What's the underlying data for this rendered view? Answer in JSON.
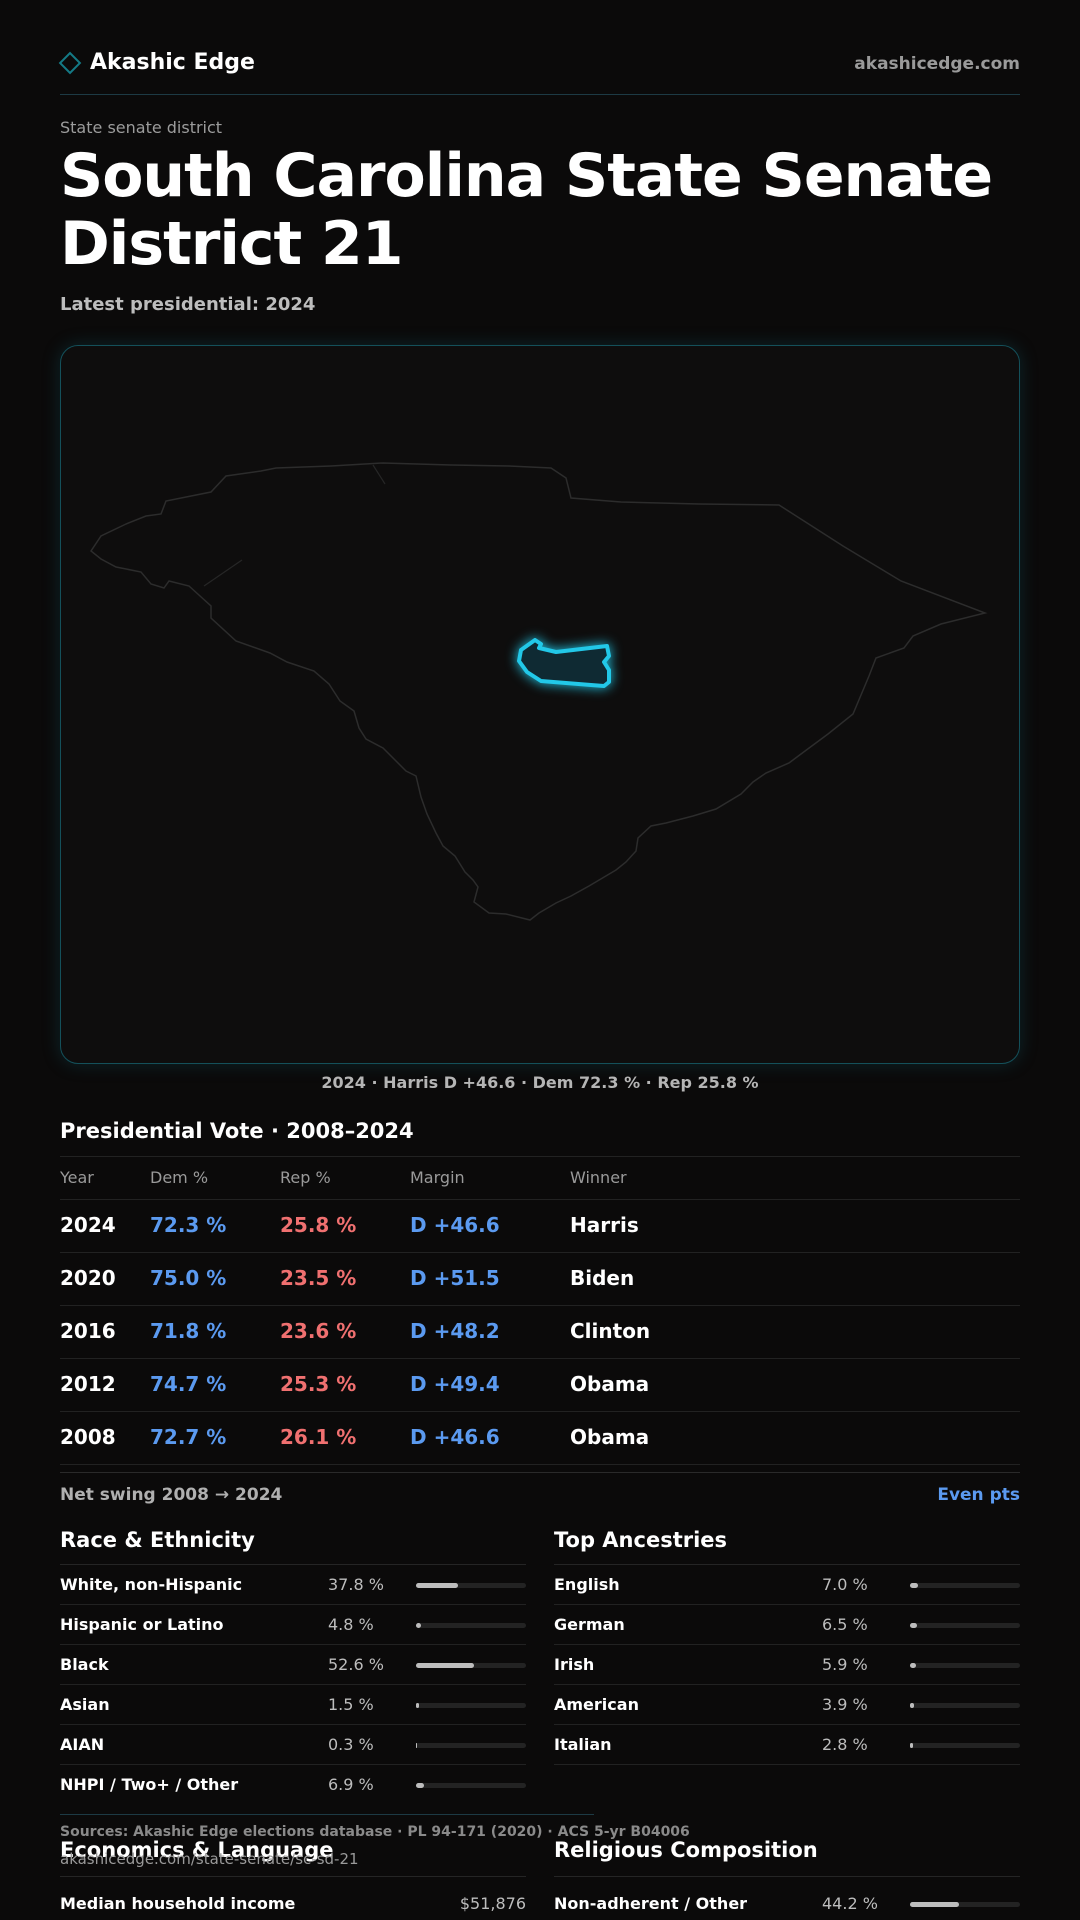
{
  "header": {
    "brand_name": "Akashic Edge",
    "site_url": "akashicedge.com",
    "accent_color": "#147a86"
  },
  "page": {
    "eyebrow": "State senate district",
    "title": "South Carolina State Senate District 21",
    "subtitle": "Latest presidential: 2024"
  },
  "map": {
    "caption": "2024 · Harris D +46.6 · Dem 72.3 % · Rep 25.8 %",
    "highlight_color": "#22c8e8"
  },
  "presidential": {
    "title": "Presidential Vote · 2008–2024",
    "headers": {
      "year": "Year",
      "dem": "Dem %",
      "rep": "Rep %",
      "margin": "Margin",
      "winner": "Winner"
    },
    "rows": [
      {
        "year": "2024",
        "dem": "72.3 %",
        "rep": "25.8 %",
        "margin": "D +46.6",
        "winner": "Harris"
      },
      {
        "year": "2020",
        "dem": "75.0 %",
        "rep": "23.5 %",
        "margin": "D +51.5",
        "winner": "Biden"
      },
      {
        "year": "2016",
        "dem": "71.8 %",
        "rep": "23.6 %",
        "margin": "D +48.2",
        "winner": "Clinton"
      },
      {
        "year": "2012",
        "dem": "74.7 %",
        "rep": "25.3 %",
        "margin": "D +49.4",
        "winner": "Obama"
      },
      {
        "year": "2008",
        "dem": "72.7 %",
        "rep": "26.1 %",
        "margin": "D +46.6",
        "winner": "Obama"
      }
    ],
    "swing_label": "Net swing 2008 → 2024",
    "swing_value": "Even pts"
  },
  "race": {
    "title": "Race & Ethnicity",
    "rows": [
      {
        "label": "White, non-Hispanic",
        "value": "37.8 %",
        "pct": 37.8
      },
      {
        "label": "Hispanic or Latino",
        "value": "4.8 %",
        "pct": 4.8
      },
      {
        "label": "Black",
        "value": "52.6 %",
        "pct": 52.6
      },
      {
        "label": "Asian",
        "value": "1.5 %",
        "pct": 1.5
      },
      {
        "label": "AIAN",
        "value": "0.3 %",
        "pct": 0.3
      },
      {
        "label": "NHPI / Two+ / Other",
        "value": "6.9 %",
        "pct": 6.9
      }
    ]
  },
  "ancestry": {
    "title": "Top Ancestries",
    "rows": [
      {
        "label": "English",
        "value": "7.0 %",
        "pct": 7.0
      },
      {
        "label": "German",
        "value": "6.5 %",
        "pct": 6.5
      },
      {
        "label": "Irish",
        "value": "5.9 %",
        "pct": 5.9
      },
      {
        "label": "American",
        "value": "3.9 %",
        "pct": 3.9
      },
      {
        "label": "Italian",
        "value": "2.8 %",
        "pct": 2.8
      }
    ]
  },
  "footer": {
    "sources": "Sources: Akashic Edge elections database · PL 94-171 (2020) · ACS 5-yr B04006",
    "url": "akashicedge.com/state-senate/sc-sd-21"
  },
  "economics": {
    "title": "Economics & Language",
    "rows": [
      {
        "label": "Median household income",
        "value": "$51,876"
      }
    ]
  },
  "religion": {
    "title": "Religious Composition",
    "rows": [
      {
        "label": "Non-adherent / Other",
        "value": "44.2 %",
        "pct": 44.2
      }
    ]
  }
}
